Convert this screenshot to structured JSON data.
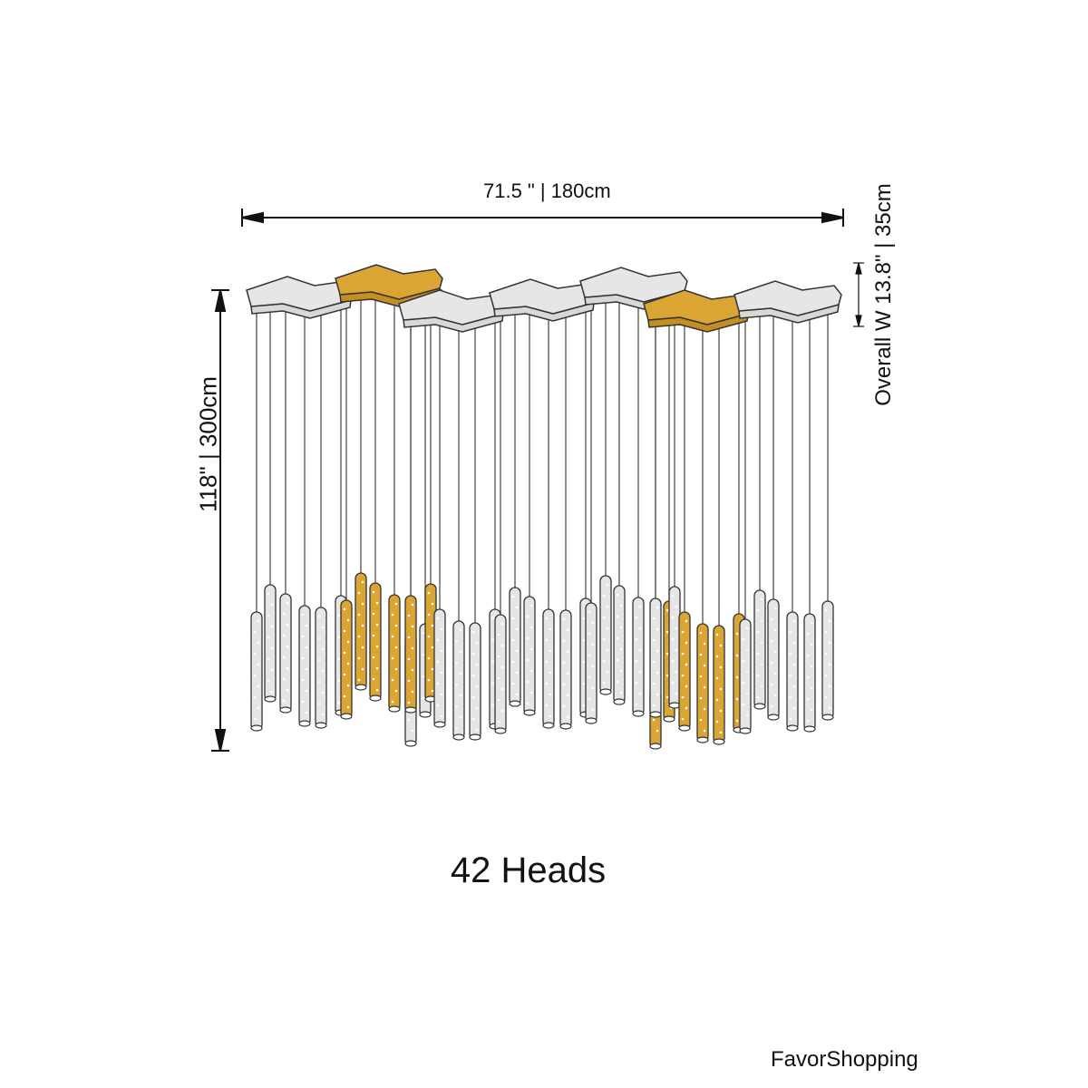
{
  "dimensions": {
    "width": "71.5 \" | 180cm",
    "height": "118\" | 300cm",
    "depth": "Overall W 13.8\" | 35cm"
  },
  "heads_label": "42 Heads",
  "brand": "FavorShopping",
  "colors": {
    "gold": "#dba534",
    "silver": "#e6e6e6",
    "outline": "#333333"
  }
}
